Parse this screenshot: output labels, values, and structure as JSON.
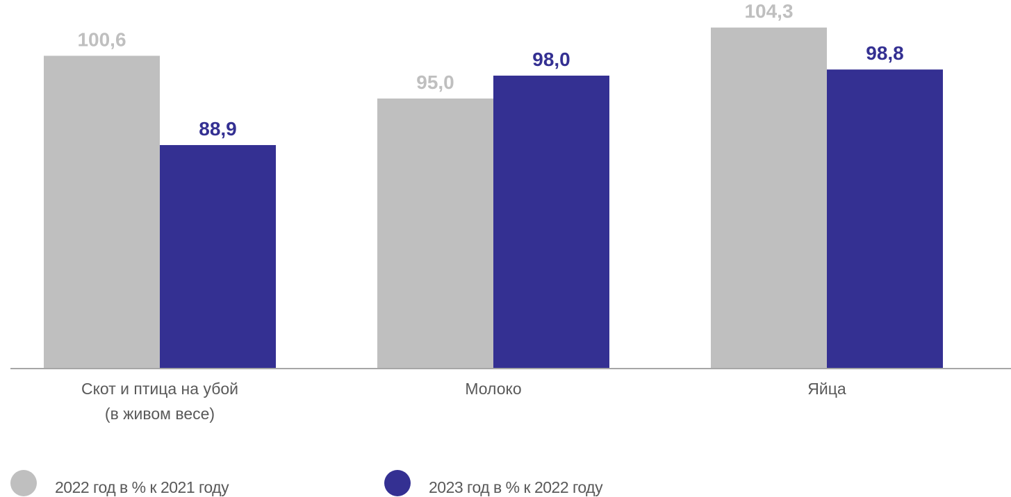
{
  "chart_data": {
    "type": "bar",
    "categories": [
      [
        "Скот и птица на убой",
        "(в живом весе)"
      ],
      [
        "Молоко"
      ],
      [
        "Яйца"
      ]
    ],
    "series": [
      {
        "name": "2022 год в % к  2021 году",
        "values": [
          100.6,
          95.0,
          104.3
        ],
        "labels": [
          "100,6",
          "95,0",
          "104,3"
        ],
        "color": "#bfbfbf"
      },
      {
        "name": "2023 год в % к  2022 году",
        "values": [
          88.9,
          98.0,
          98.8
        ],
        "labels": [
          "88,9",
          "98,0",
          "98,8"
        ],
        "color": "#343092"
      }
    ],
    "value_label_colors": [
      "#bfbfbf",
      "#343092"
    ],
    "axis_color": "#a6a6a6",
    "category_label_color": "#595959",
    "ylim": [
      59.7,
      107.0
    ],
    "grid": false,
    "legend_position": "bottom-left"
  }
}
